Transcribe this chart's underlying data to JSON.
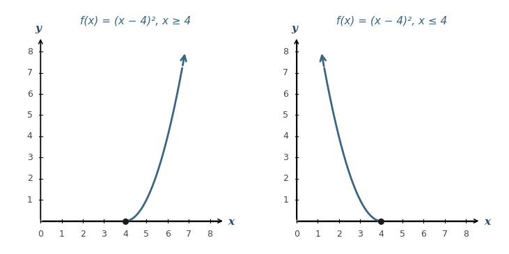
{
  "title1": "f(x) = (x − 4)², x ≥ 4",
  "title2": "f(x) = (x − 4)², x ≤ 4",
  "curve_color": "#3a6480",
  "dot_color": "#1a1a1a",
  "xlim": [
    -0.4,
    9.0
  ],
  "ylim": [
    -0.6,
    9.0
  ],
  "xticks": [
    0,
    1,
    2,
    3,
    4,
    5,
    6,
    7,
    8
  ],
  "yticks": [
    0,
    1,
    2,
    3,
    4,
    5,
    6,
    7,
    8
  ],
  "xlabel": "x",
  "ylabel": "y",
  "plot1_xstart": 4.0,
  "plot1_xend": 6.83,
  "plot2_xstart": 1.17,
  "plot2_xend": 4.0,
  "dot_x": 4.0,
  "dot_y": 0.0,
  "arrow_color": "#3a6480",
  "linewidth": 2.0,
  "title_color": "#3a6480",
  "title_fontsize": 11,
  "axis_label_color": "#2a4a6a",
  "tick_color": "#444444",
  "tick_fontsize": 9,
  "figsize": [
    7.31,
    3.65
  ],
  "dpi": 100
}
